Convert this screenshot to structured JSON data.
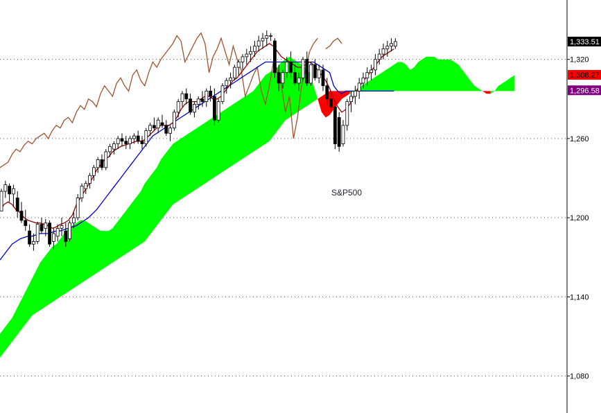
{
  "chart_data": {
    "type": "candlestick",
    "annotation": "S&P500",
    "ylim": [
      1052,
      1365
    ],
    "y_ticks": [
      1080,
      1140,
      1200,
      1260,
      1320
    ],
    "y_tick_labels": [
      "1,080",
      "1,140",
      "1,200",
      "1,260",
      "1,320"
    ],
    "grid": "horizontal dotted",
    "last_values": [
      {
        "label": "1,333.51",
        "value": 1333.51,
        "color": "#000000",
        "text_color": "#ffffff"
      },
      {
        "label": "1,308.27",
        "value": 1308.27,
        "color": "#ff0000",
        "text_color": "#000000"
      },
      {
        "label": "1,296.58",
        "value": 1296.58,
        "color": "#800080",
        "text_color": "#ffffff"
      }
    ],
    "candles": [
      [
        1205,
        1222,
        1205,
        1220
      ],
      [
        1220,
        1228,
        1215,
        1225
      ],
      [
        1224,
        1226,
        1212,
        1218
      ],
      [
        1218,
        1225,
        1208,
        1222
      ],
      [
        1215,
        1220,
        1200,
        1205
      ],
      [
        1205,
        1212,
        1196,
        1198
      ],
      [
        1198,
        1206,
        1190,
        1194
      ],
      [
        1190,
        1195,
        1178,
        1180
      ],
      [
        1180,
        1188,
        1175,
        1182
      ],
      [
        1182,
        1197,
        1180,
        1195
      ],
      [
        1195,
        1200,
        1188,
        1190
      ],
      [
        1192,
        1199,
        1186,
        1196
      ],
      [
        1196,
        1198,
        1178,
        1180
      ],
      [
        1182,
        1192,
        1176,
        1188
      ],
      [
        1186,
        1195,
        1182,
        1192
      ],
      [
        1192,
        1200,
        1186,
        1194
      ],
      [
        1190,
        1196,
        1178,
        1182
      ],
      [
        1184,
        1198,
        1182,
        1196
      ],
      [
        1196,
        1204,
        1192,
        1200
      ],
      [
        1200,
        1218,
        1198,
        1215
      ],
      [
        1215,
        1226,
        1212,
        1224
      ],
      [
        1222,
        1228,
        1218,
        1226
      ],
      [
        1226,
        1234,
        1222,
        1232
      ],
      [
        1232,
        1240,
        1228,
        1238
      ],
      [
        1238,
        1246,
        1234,
        1244
      ],
      [
        1244,
        1248,
        1236,
        1238
      ],
      [
        1238,
        1252,
        1236,
        1250
      ],
      [
        1250,
        1256,
        1246,
        1254
      ],
      [
        1252,
        1258,
        1248,
        1256
      ],
      [
        1256,
        1262,
        1252,
        1260
      ],
      [
        1260,
        1264,
        1254,
        1258
      ],
      [
        1258,
        1262,
        1252,
        1256
      ],
      [
        1256,
        1262,
        1252,
        1260
      ],
      [
        1260,
        1264,
        1256,
        1262
      ],
      [
        1262,
        1266,
        1256,
        1258
      ],
      [
        1258,
        1262,
        1252,
        1256
      ],
      [
        1256,
        1268,
        1254,
        1266
      ],
      [
        1266,
        1272,
        1262,
        1270
      ],
      [
        1270,
        1276,
        1266,
        1268
      ],
      [
        1268,
        1276,
        1264,
        1274
      ],
      [
        1272,
        1278,
        1268,
        1270
      ],
      [
        1270,
        1274,
        1262,
        1264
      ],
      [
        1264,
        1270,
        1258,
        1268
      ],
      [
        1268,
        1282,
        1266,
        1280
      ],
      [
        1280,
        1290,
        1276,
        1288
      ],
      [
        1288,
        1296,
        1284,
        1294
      ],
      [
        1294,
        1298,
        1286,
        1290
      ],
      [
        1290,
        1294,
        1278,
        1280
      ],
      [
        1280,
        1288,
        1276,
        1286
      ],
      [
        1286,
        1292,
        1282,
        1290
      ],
      [
        1290,
        1296,
        1284,
        1288
      ],
      [
        1288,
        1298,
        1284,
        1296
      ],
      [
        1296,
        1300,
        1288,
        1292
      ],
      [
        1292,
        1298,
        1270,
        1274
      ],
      [
        1274,
        1290,
        1272,
        1288
      ],
      [
        1288,
        1302,
        1286,
        1300
      ],
      [
        1300,
        1306,
        1294,
        1304
      ],
      [
        1304,
        1310,
        1298,
        1306
      ],
      [
        1306,
        1316,
        1304,
        1314
      ],
      [
        1314,
        1320,
        1308,
        1318
      ],
      [
        1318,
        1324,
        1312,
        1322
      ],
      [
        1322,
        1328,
        1316,
        1324
      ],
      [
        1324,
        1330,
        1318,
        1326
      ],
      [
        1326,
        1334,
        1322,
        1330
      ],
      [
        1330,
        1338,
        1326,
        1334
      ],
      [
        1334,
        1340,
        1328,
        1336
      ],
      [
        1336,
        1342,
        1330,
        1338
      ],
      [
        1338,
        1340,
        1334,
        1338
      ],
      [
        1334,
        1336,
        1306,
        1310
      ],
      [
        1310,
        1316,
        1296,
        1302
      ],
      [
        1302,
        1312,
        1298,
        1310
      ],
      [
        1310,
        1322,
        1306,
        1318
      ],
      [
        1318,
        1326,
        1306,
        1310
      ],
      [
        1310,
        1316,
        1300,
        1302
      ],
      [
        1302,
        1310,
        1296,
        1306
      ],
      [
        1306,
        1322,
        1304,
        1320
      ],
      [
        1320,
        1326,
        1300,
        1302
      ],
      [
        1302,
        1318,
        1300,
        1316
      ],
      [
        1316,
        1320,
        1304,
        1306
      ],
      [
        1306,
        1316,
        1302,
        1312
      ],
      [
        1312,
        1316,
        1296,
        1300
      ],
      [
        1300,
        1306,
        1286,
        1290
      ],
      [
        1290,
        1296,
        1280,
        1284
      ],
      [
        1284,
        1288,
        1252,
        1256
      ],
      [
        1276,
        1280,
        1250,
        1254
      ],
      [
        1256,
        1274,
        1254,
        1270
      ],
      [
        1270,
        1290,
        1266,
        1288
      ],
      [
        1288,
        1296,
        1280,
        1292
      ],
      [
        1292,
        1300,
        1286,
        1296
      ],
      [
        1296,
        1306,
        1290,
        1302
      ],
      [
        1302,
        1310,
        1298,
        1306
      ],
      [
        1306,
        1314,
        1300,
        1310
      ],
      [
        1310,
        1316,
        1304,
        1312
      ],
      [
        1312,
        1324,
        1308,
        1320
      ],
      [
        1320,
        1328,
        1316,
        1324
      ],
      [
        1324,
        1332,
        1320,
        1328
      ],
      [
        1328,
        1334,
        1322,
        1330
      ],
      [
        1330,
        1336,
        1326,
        1332
      ],
      [
        1330,
        1336,
        1328,
        1333.51
      ]
    ],
    "lagging_span": [
      [
        1238,
        1240,
        1242,
        1248,
        1252,
        1250,
        1255,
        1258,
        1256,
        1260,
        1262,
        1264,
        1260,
        1266,
        1270,
        1268,
        1274,
        1276,
        1272,
        1280,
        1285,
        1282,
        1290,
        1288,
        1284,
        1294,
        1300,
        1296,
        1292,
        1302,
        1306,
        1300,
        1296,
        1308,
        1312,
        1304,
        1300,
        1310,
        1318,
        1314,
        1320,
        1324,
        1328,
        1332,
        1338,
        1334,
        1318,
        1324,
        1330,
        1336,
        1340,
        1332,
        1310,
        1322,
        1328,
        1336,
        1326,
        1316,
        1330,
        1320,
        1312,
        1292,
        1300,
        1308,
        1314,
        1296,
        1286,
        1300,
        1318,
        1312,
        1300,
        1280,
        1292,
        1260,
        1276,
        1300,
        1312,
        1326,
        1332,
        1336
      ],
      {
        "gap_tail": [
          1328,
          1330,
          1334,
          1336,
          1332
        ]
      }
    ],
    "tenkan": [
      1205,
      1210,
      1212,
      1210,
      1206,
      1204,
      1200,
      1198,
      1197,
      1196,
      1196,
      1195,
      1194,
      1192,
      1193,
      1195,
      1196,
      1198,
      1202,
      1210,
      1215,
      1220,
      1225,
      1230,
      1236,
      1240,
      1244,
      1246,
      1250,
      1252,
      1254,
      1255,
      1256,
      1257,
      1258,
      1258,
      1259,
      1262,
      1265,
      1268,
      1270,
      1270,
      1270,
      1272,
      1276,
      1282,
      1286,
      1288,
      1288,
      1288,
      1290,
      1292,
      1292,
      1290,
      1290,
      1292,
      1296,
      1300,
      1304,
      1306,
      1310,
      1314,
      1318,
      1322,
      1326,
      1328,
      1330,
      1332,
      1330,
      1326,
      1322,
      1320,
      1318,
      1316,
      1314,
      1314,
      1316,
      1318,
      1316,
      1312,
      1308,
      1304,
      1298,
      1290,
      1284,
      1280,
      1282,
      1286,
      1292,
      1298,
      1302,
      1306,
      1310,
      1314,
      1318,
      1322,
      1324,
      1326,
      1328
    ],
    "kijun": [
      1168,
      1172,
      1176,
      1180,
      1182,
      1184,
      1185,
      1186,
      1186,
      1187,
      1188,
      1188,
      1188,
      1189,
      1190,
      1190,
      1191,
      1192,
      1193,
      1194,
      1196,
      1198,
      1200,
      1203,
      1206,
      1210,
      1214,
      1218,
      1222,
      1226,
      1230,
      1234,
      1238,
      1242,
      1246,
      1250,
      1254,
      1258,
      1262,
      1264,
      1266,
      1268,
      1270,
      1272,
      1274,
      1276,
      1278,
      1280,
      1282,
      1284,
      1286,
      1288,
      1290,
      1292,
      1294,
      1296,
      1298,
      1300,
      1302,
      1304,
      1306,
      1308,
      1310,
      1312,
      1314,
      1316,
      1318,
      1318,
      1318,
      1318,
      1318,
      1318,
      1318,
      1318,
      1318,
      1318,
      1318,
      1318,
      1318,
      1316,
      1314,
      1312,
      1310,
      1300,
      1296,
      1294,
      1296,
      1296,
      1296,
      1296,
      1296,
      1296,
      1296,
      1296,
      1296,
      1296,
      1296,
      1296,
      1296
    ],
    "span_a": [
      1112,
      1116,
      1120,
      1124,
      1130,
      1136,
      1142,
      1148,
      1154,
      1160,
      1166,
      1170,
      1174,
      1178,
      1180,
      1184,
      1188,
      1192,
      1194,
      1196,
      1198,
      1198,
      1196,
      1194,
      1192,
      1190,
      1190,
      1190,
      1192,
      1196,
      1200,
      1204,
      1208,
      1212,
      1216,
      1220,
      1226,
      1230,
      1234,
      1238,
      1244,
      1248,
      1252,
      1256,
      1258,
      1260,
      1262,
      1264,
      1266,
      1268,
      1270,
      1272,
      1274,
      1276,
      1278,
      1280,
      1282,
      1284,
      1286,
      1288,
      1290,
      1292,
      1294,
      1296,
      1300,
      1304,
      1308,
      1310,
      1312,
      1314,
      1318,
      1320,
      1322,
      1320,
      1318,
      1316,
      1314,
      1310,
      1300,
      1290,
      1280,
      1276,
      1278,
      1282,
      1286,
      1290,
      1292,
      1294,
      1296,
      1298,
      1300,
      1302,
      1304,
      1306,
      1308,
      1310,
      1312,
      1314,
      1316,
      1318,
      1318,
      1316,
      1312,
      1314,
      1318,
      1320,
      1322,
      1322,
      1322,
      1320,
      1320,
      1320,
      1320,
      1318,
      1316,
      1312,
      1308,
      1304,
      1300,
      1298,
      1296,
      1294,
      1294,
      1296,
      1300,
      1302,
      1304,
      1306,
      1308
    ],
    "span_b": [
      1094,
      1098,
      1102,
      1106,
      1110,
      1114,
      1118,
      1122,
      1126,
      1128,
      1130,
      1132,
      1134,
      1136,
      1138,
      1140,
      1142,
      1144,
      1146,
      1148,
      1150,
      1152,
      1154,
      1156,
      1158,
      1160,
      1162,
      1164,
      1166,
      1168,
      1170,
      1172,
      1174,
      1176,
      1178,
      1180,
      1182,
      1186,
      1190,
      1194,
      1198,
      1202,
      1206,
      1210,
      1212,
      1214,
      1216,
      1218,
      1220,
      1222,
      1224,
      1226,
      1228,
      1230,
      1232,
      1234,
      1236,
      1238,
      1240,
      1242,
      1244,
      1246,
      1248,
      1250,
      1252,
      1254,
      1256,
      1258,
      1262,
      1266,
      1270,
      1274,
      1276,
      1278,
      1280,
      1282,
      1284,
      1286,
      1288,
      1290,
      1292,
      1294,
      1296,
      1296,
      1296,
      1296,
      1296,
      1296,
      1296,
      1296,
      1296,
      1296,
      1296,
      1296,
      1296,
      1296,
      1296,
      1296,
      1296,
      1296,
      1296,
      1296,
      1296,
      1296,
      1296,
      1296,
      1296,
      1296,
      1296,
      1296,
      1296,
      1296,
      1296,
      1296,
      1296,
      1296,
      1296,
      1296,
      1296,
      1296,
      1296,
      1296,
      1296,
      1296,
      1296,
      1296,
      1296,
      1296,
      1296
    ],
    "colors": {
      "cloud_bull": "#00ff00",
      "cloud_bear": "#ff0000",
      "tenkan": "#990000",
      "kijun": "#0000cc",
      "lagging": "#a0522d",
      "candle_up": "#ffffff",
      "candle_down": "#000000",
      "grid": "#555555"
    }
  }
}
